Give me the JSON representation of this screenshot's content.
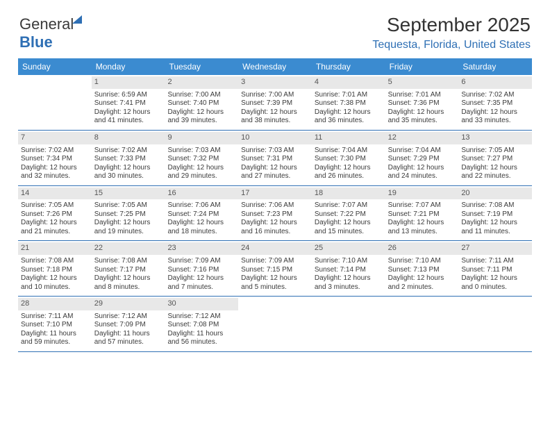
{
  "logo": {
    "part1": "General",
    "part2": "Blue"
  },
  "title": "September 2025",
  "location": "Tequesta, Florida, United States",
  "colors": {
    "header_bg": "#3b8bd0",
    "accent": "#2e6fb4",
    "daynum_bg": "#e8e8e8",
    "text": "#333333"
  },
  "weekdays": [
    "Sunday",
    "Monday",
    "Tuesday",
    "Wednesday",
    "Thursday",
    "Friday",
    "Saturday"
  ],
  "weeks": [
    [
      null,
      {
        "n": "1",
        "sr": "6:59 AM",
        "ss": "7:41 PM",
        "dl": "12 hours and 41 minutes."
      },
      {
        "n": "2",
        "sr": "7:00 AM",
        "ss": "7:40 PM",
        "dl": "12 hours and 39 minutes."
      },
      {
        "n": "3",
        "sr": "7:00 AM",
        "ss": "7:39 PM",
        "dl": "12 hours and 38 minutes."
      },
      {
        "n": "4",
        "sr": "7:01 AM",
        "ss": "7:38 PM",
        "dl": "12 hours and 36 minutes."
      },
      {
        "n": "5",
        "sr": "7:01 AM",
        "ss": "7:36 PM",
        "dl": "12 hours and 35 minutes."
      },
      {
        "n": "6",
        "sr": "7:02 AM",
        "ss": "7:35 PM",
        "dl": "12 hours and 33 minutes."
      }
    ],
    [
      {
        "n": "7",
        "sr": "7:02 AM",
        "ss": "7:34 PM",
        "dl": "12 hours and 32 minutes."
      },
      {
        "n": "8",
        "sr": "7:02 AM",
        "ss": "7:33 PM",
        "dl": "12 hours and 30 minutes."
      },
      {
        "n": "9",
        "sr": "7:03 AM",
        "ss": "7:32 PM",
        "dl": "12 hours and 29 minutes."
      },
      {
        "n": "10",
        "sr": "7:03 AM",
        "ss": "7:31 PM",
        "dl": "12 hours and 27 minutes."
      },
      {
        "n": "11",
        "sr": "7:04 AM",
        "ss": "7:30 PM",
        "dl": "12 hours and 26 minutes."
      },
      {
        "n": "12",
        "sr": "7:04 AM",
        "ss": "7:29 PM",
        "dl": "12 hours and 24 minutes."
      },
      {
        "n": "13",
        "sr": "7:05 AM",
        "ss": "7:27 PM",
        "dl": "12 hours and 22 minutes."
      }
    ],
    [
      {
        "n": "14",
        "sr": "7:05 AM",
        "ss": "7:26 PM",
        "dl": "12 hours and 21 minutes."
      },
      {
        "n": "15",
        "sr": "7:05 AM",
        "ss": "7:25 PM",
        "dl": "12 hours and 19 minutes."
      },
      {
        "n": "16",
        "sr": "7:06 AM",
        "ss": "7:24 PM",
        "dl": "12 hours and 18 minutes."
      },
      {
        "n": "17",
        "sr": "7:06 AM",
        "ss": "7:23 PM",
        "dl": "12 hours and 16 minutes."
      },
      {
        "n": "18",
        "sr": "7:07 AM",
        "ss": "7:22 PM",
        "dl": "12 hours and 15 minutes."
      },
      {
        "n": "19",
        "sr": "7:07 AM",
        "ss": "7:21 PM",
        "dl": "12 hours and 13 minutes."
      },
      {
        "n": "20",
        "sr": "7:08 AM",
        "ss": "7:19 PM",
        "dl": "12 hours and 11 minutes."
      }
    ],
    [
      {
        "n": "21",
        "sr": "7:08 AM",
        "ss": "7:18 PM",
        "dl": "12 hours and 10 minutes."
      },
      {
        "n": "22",
        "sr": "7:08 AM",
        "ss": "7:17 PM",
        "dl": "12 hours and 8 minutes."
      },
      {
        "n": "23",
        "sr": "7:09 AM",
        "ss": "7:16 PM",
        "dl": "12 hours and 7 minutes."
      },
      {
        "n": "24",
        "sr": "7:09 AM",
        "ss": "7:15 PM",
        "dl": "12 hours and 5 minutes."
      },
      {
        "n": "25",
        "sr": "7:10 AM",
        "ss": "7:14 PM",
        "dl": "12 hours and 3 minutes."
      },
      {
        "n": "26",
        "sr": "7:10 AM",
        "ss": "7:13 PM",
        "dl": "12 hours and 2 minutes."
      },
      {
        "n": "27",
        "sr": "7:11 AM",
        "ss": "7:11 PM",
        "dl": "12 hours and 0 minutes."
      }
    ],
    [
      {
        "n": "28",
        "sr": "7:11 AM",
        "ss": "7:10 PM",
        "dl": "11 hours and 59 minutes."
      },
      {
        "n": "29",
        "sr": "7:12 AM",
        "ss": "7:09 PM",
        "dl": "11 hours and 57 minutes."
      },
      {
        "n": "30",
        "sr": "7:12 AM",
        "ss": "7:08 PM",
        "dl": "11 hours and 56 minutes."
      },
      null,
      null,
      null,
      null
    ]
  ],
  "labels": {
    "sunrise": "Sunrise:",
    "sunset": "Sunset:",
    "daylight": "Daylight:"
  }
}
